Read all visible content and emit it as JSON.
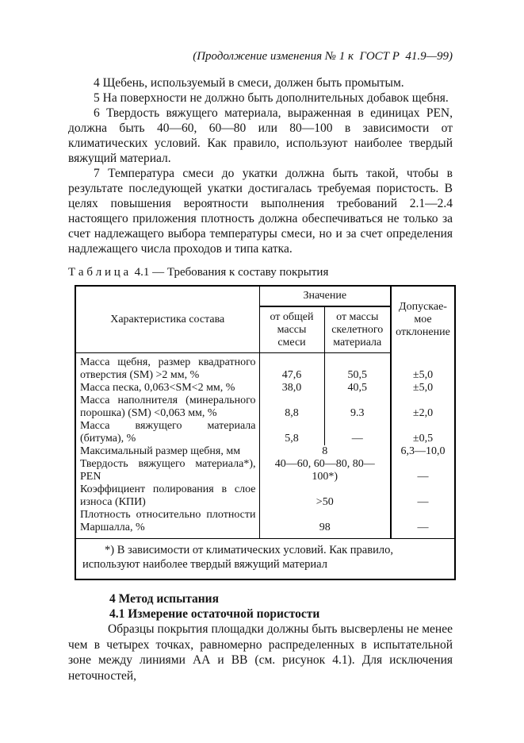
{
  "page_header": {
    "continuation_note": "(Продолжение изменения № 1 к  ГОСТ Р  41.9—99)"
  },
  "paragraphs": {
    "p4": "4 Щебень, используемый в смеси, должен быть промытым.",
    "p5": "5 На поверхности не должно быть дополнительных добавок щебня.",
    "p6": "6 Твердость вяжущего материала, выраженная в единицах PEN, должна быть 40—60, 60—80 или 80—100 в зависимости от климатических условий. Как правило, используют наиболее твердый вяжущий материал.",
    "p7": "7 Температура смеси до укатки должна быть такой, чтобы в результате последующей укатки достигалась требуемая пористость. В целях повышения вероятности выполнения требований 2.1—2.4 настоящего приложения плотность должна обеспечиваться не только за счет надлежащего выбора температуры смеси, но и за счет определения надлежащего числа проходов и типа катка."
  },
  "table": {
    "caption": "Т а б л и ц а  4.1 — Требования к составу покрытия",
    "header": {
      "characteristic": "Характеристика состава",
      "value_group": "Значение",
      "value_sub1": "от общей массы смеси",
      "value_sub2": "от массы скелетного материала",
      "deviation": "Допускае-мое отклонение"
    },
    "rows": [
      {
        "label": "Масса щебня, размер квадратного отверстия (SM) >2 мм, %",
        "value_total": "47,6",
        "value_skeletal": "50,5",
        "deviation": "±5,0"
      },
      {
        "label": "Масса песка, 0,063<SM<2 мм, %",
        "value_total": "38,0",
        "value_skeletal": "40,5",
        "deviation": "±5,0"
      },
      {
        "label": "Масса наполнителя (минерального порошка) (SM) <0,063 мм, %",
        "value_total": "8,8",
        "value_skeletal": "9.3",
        "deviation": "±2,0"
      },
      {
        "label": "Масса вяжущего материала (битума), %",
        "value_total": "5,8",
        "value_skeletal": "—",
        "deviation": "±0,5"
      },
      {
        "label": "Максимальный размер щебня, мм",
        "value_combined": "8",
        "deviation": "6,3—10,0"
      },
      {
        "label": "Твердость вяжущего материала*), PEN",
        "value_combined": "40—60, 60—80, 80—100*)",
        "deviation": "—"
      },
      {
        "label": "Коэффициент полирования в слое износа (КПИ)",
        "value_combined": ">50",
        "deviation": "—"
      },
      {
        "label": "Плотность относительно плотности Маршалла, %",
        "value_combined": "98",
        "deviation": "—"
      }
    ],
    "footnote": "*) В зависимости от климатических условий. Как правило, используют наиболее твердый вяжущий материал"
  },
  "section": {
    "heading_4": "4 Метод испытания",
    "heading_4_1": "4.1 Измерение остаточной пористости",
    "p_4_1": "Образцы покрытия площадки должны быть высверлены не менее чем в четырех точках, равномерно распределенных в испытательной зоне между линиями АА и ВВ (см. рисунок 4.1). Для исключения неточностей,"
  }
}
